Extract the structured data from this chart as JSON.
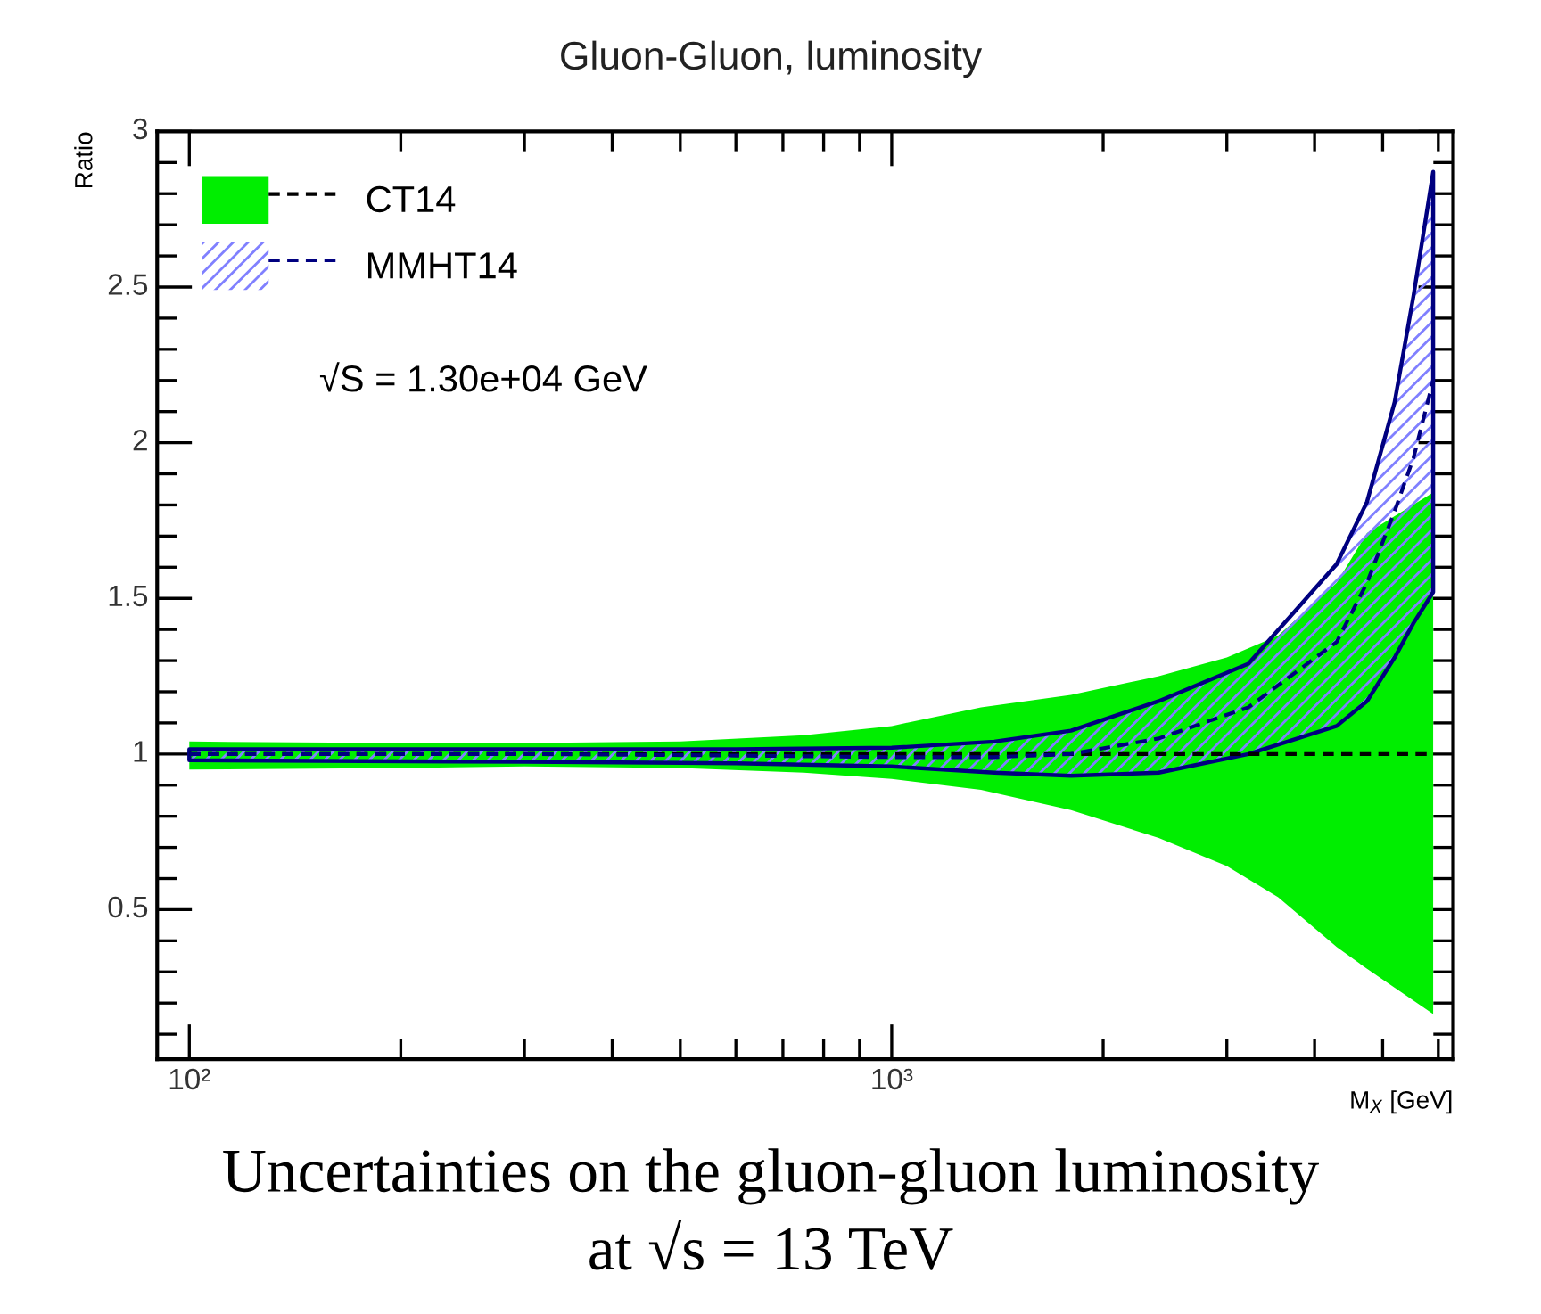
{
  "chart_data": {
    "type": "line",
    "title": "Gluon-Gluon, luminosity",
    "xlabel": "M$_{X}$ [GeV]",
    "ylabel": "Ratio",
    "log": "x",
    "xlim": [
      90,
      6300
    ],
    "ylim": [
      0.02,
      3.0
    ],
    "xticks": [
      {
        "value": 100,
        "label": "10²"
      },
      {
        "value": 200,
        "label": null
      },
      {
        "value": 300,
        "label": null
      },
      {
        "value": 400,
        "label": null
      },
      {
        "value": 500,
        "label": null
      },
      {
        "value": 600,
        "label": null
      },
      {
        "value": 700,
        "label": null
      },
      {
        "value": 800,
        "label": null
      },
      {
        "value": 900,
        "label": null
      },
      {
        "value": 1000,
        "label": "10³"
      },
      {
        "value": 2000,
        "label": null
      },
      {
        "value": 3000,
        "label": null
      },
      {
        "value": 4000,
        "label": null
      },
      {
        "value": 5000,
        "label": null
      },
      {
        "value": 6000,
        "label": null
      }
    ],
    "yticks": [
      {
        "value": 0.1,
        "label": null
      },
      {
        "value": 0.2,
        "label": null
      },
      {
        "value": 0.3,
        "label": null
      },
      {
        "value": 0.4,
        "label": null
      },
      0.5,
      {
        "value": 0.6,
        "label": null
      },
      {
        "value": 0.7,
        "label": null
      },
      {
        "value": 0.8,
        "label": null
      },
      {
        "value": 0.9,
        "label": null
      },
      1,
      {
        "value": 1.1,
        "label": null
      },
      {
        "value": 1.2,
        "label": null
      },
      {
        "value": 1.3,
        "label": null
      },
      {
        "value": 1.4,
        "label": null
      },
      1.5,
      {
        "value": 1.6,
        "label": null
      },
      {
        "value": 1.7,
        "label": null
      },
      {
        "value": 1.8,
        "label": null
      },
      {
        "value": 1.9,
        "label": null
      },
      2,
      {
        "value": 2.1,
        "label": null
      },
      {
        "value": 2.2,
        "label": null
      },
      {
        "value": 2.3,
        "label": null
      },
      {
        "value": 2.4,
        "label": null
      },
      2.5,
      {
        "value": 2.6,
        "label": null
      },
      {
        "value": 2.7,
        "label": null
      },
      {
        "value": 2.8,
        "label": null
      },
      {
        "value": 2.9,
        "label": null
      },
      3
    ],
    "grid": false,
    "legend": "top left",
    "colors": [
      "#00ee00",
      "#8080ff"
    ],
    "marker": "none",
    "line_style": "dashed",
    "series": [
      {
        "name": "CT14",
        "color": "#000000",
        "x": [
          100,
          200,
          300,
          500,
          750,
          1000,
          1340,
          1800,
          2400,
          3000,
          3550,
          4300,
          4750,
          5900
        ],
        "values": [
          1,
          1,
          1,
          1,
          1,
          1,
          1,
          1,
          1,
          1,
          1,
          1,
          1,
          1
        ],
        "upper": [
          1.04,
          1.035,
          1.035,
          1.04,
          1.06,
          1.09,
          1.15,
          1.19,
          1.25,
          1.31,
          1.38,
          1.55,
          1.71,
          1.84
        ],
        "lower": [
          0.95,
          0.955,
          0.96,
          0.955,
          0.94,
          0.92,
          0.885,
          0.82,
          0.73,
          0.64,
          0.54,
          0.38,
          0.31,
          0.165
        ]
      },
      {
        "name": "MMHT14",
        "color": "#000080",
        "x": [
          100,
          300,
          600,
          1000,
          1400,
          1800,
          2400,
          3220,
          4300,
          4750,
          5200,
          5530,
          5900
        ],
        "values": [
          1.0,
          1.0,
          0.995,
          0.99,
          0.99,
          1.0,
          1.05,
          1.15,
          1.36,
          1.55,
          1.78,
          1.95,
          2.2
        ],
        "upper": [
          1.015,
          1.015,
          1.015,
          1.02,
          1.04,
          1.075,
          1.17,
          1.29,
          1.61,
          1.81,
          2.13,
          2.47,
          2.87
        ],
        "lower": [
          0.98,
          0.975,
          0.97,
          0.96,
          0.94,
          0.93,
          0.94,
          1.0,
          1.09,
          1.17,
          1.31,
          1.42,
          1.52
        ]
      }
    ],
    "annotations": [
      "√S = 1.30e+04 GeV",
      "Uncertainties on the gluon-gluon luminosity\nat √s = 13 TeV"
    ]
  }
}
